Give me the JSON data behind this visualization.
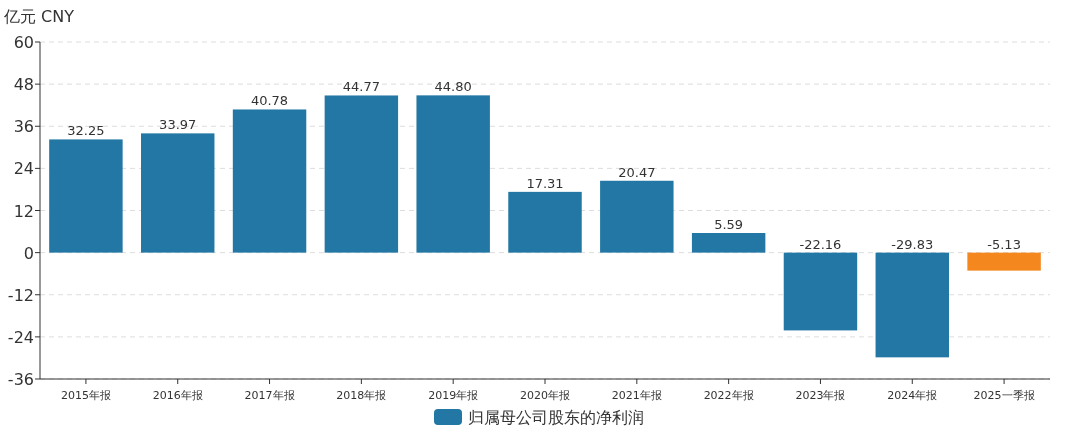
{
  "chart_data": {
    "type": "bar",
    "ylabel": "亿元  CNY",
    "categories": [
      "2015年报",
      "2016年报",
      "2017年报",
      "2018年报",
      "2019年报",
      "2020年报",
      "2021年报",
      "2022年报",
      "2023年报",
      "2024年报",
      "2025一季报"
    ],
    "series": [
      {
        "name": "归属母公司股东的净利润",
        "color": "#2277a4",
        "colors": [
          "#2277a4",
          "#2277a4",
          "#2277a4",
          "#2277a4",
          "#2277a4",
          "#2277a4",
          "#2277a4",
          "#2277a4",
          "#2277a4",
          "#2277a4",
          "#f5871f"
        ],
        "values": [
          32.25,
          33.97,
          40.78,
          44.77,
          44.8,
          17.31,
          20.47,
          5.59,
          -22.16,
          -29.83,
          -5.13
        ],
        "value_labels": [
          "32.25",
          "33.97",
          "40.78",
          "44.77",
          "44.80",
          "17.31",
          "20.47",
          "5.59",
          "-22.16",
          "-29.83",
          "-5.13"
        ]
      }
    ],
    "ylim": [
      -36,
      60
    ],
    "yticks": [
      -36,
      -24,
      -12,
      0,
      12,
      24,
      36,
      48,
      60
    ],
    "grid": "y",
    "legend": "bottom"
  }
}
